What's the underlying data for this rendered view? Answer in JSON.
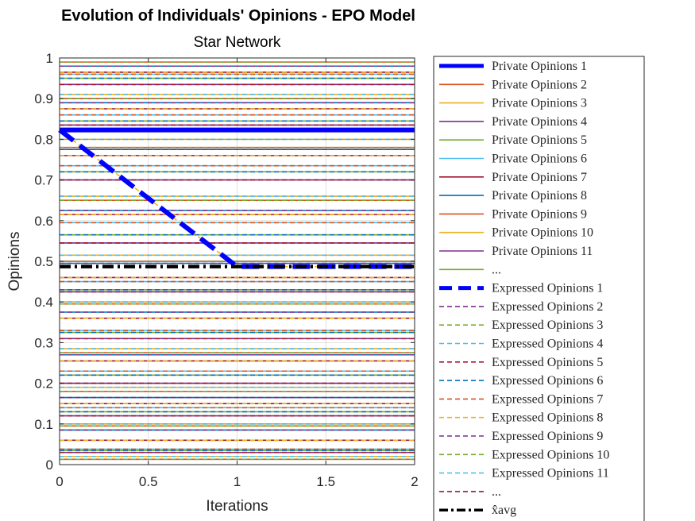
{
  "chart_data": {
    "type": "line",
    "title": "Evolution of Individuals' Opinions - EPO Model",
    "subtitle": "Star Network",
    "xlabel": "Iterations",
    "ylabel": "Opinions",
    "xlim": [
      0,
      2
    ],
    "ylim": [
      0,
      1
    ],
    "xticks": [
      "0",
      "0.5",
      "1",
      "1.5",
      "2"
    ],
    "yticks": [
      "0",
      "0.1",
      "0.2",
      "0.3",
      "0.4",
      "0.5",
      "0.6",
      "0.7",
      "0.8",
      "0.9",
      "1"
    ],
    "grid": true,
    "legend_position": "outside-right",
    "highlighted_series": [
      {
        "name": "Private Opinions 1",
        "style": "solid",
        "color": "#0000ff",
        "x": [
          0,
          1,
          2
        ],
        "y": [
          0.823,
          0.823,
          0.823
        ]
      },
      {
        "name": "Expressed Opinions 1",
        "style": "dashed",
        "color": "#0000ff",
        "x": [
          0,
          1,
          2
        ],
        "y": [
          0.823,
          0.487,
          0.487
        ]
      },
      {
        "name": "Expressed Opinions 8",
        "style": "dashed",
        "color": "#edb120",
        "x": [
          0,
          1,
          2
        ],
        "y": [
          0.823,
          0.487,
          0.487
        ]
      },
      {
        "name": "x̂_avg",
        "style": "dashdot",
        "color": "#000000",
        "x": [
          0,
          1,
          2
        ],
        "y": [
          0.487,
          0.487,
          0.487
        ]
      }
    ],
    "background_levels": {
      "note_colors": [
        "#d95319",
        "#edb120",
        "#7e2f8e",
        "#77ac30",
        "#4dbeee",
        "#a2142f",
        "#0072bd"
      ],
      "values": [
        0.013,
        0.02,
        0.03,
        0.035,
        0.038,
        0.06,
        0.085,
        0.095,
        0.1,
        0.12,
        0.13,
        0.14,
        0.15,
        0.165,
        0.18,
        0.19,
        0.2,
        0.22,
        0.23,
        0.255,
        0.27,
        0.275,
        0.285,
        0.31,
        0.325,
        0.33,
        0.36,
        0.375,
        0.395,
        0.4,
        0.425,
        0.43,
        0.45,
        0.46,
        0.495,
        0.5,
        0.515,
        0.545,
        0.565,
        0.595,
        0.615,
        0.625,
        0.65,
        0.66,
        0.7,
        0.72,
        0.735,
        0.76,
        0.775,
        0.78,
        0.8,
        0.835,
        0.845,
        0.86,
        0.875,
        0.89,
        0.9,
        0.91,
        0.935,
        0.95,
        0.96,
        0.965,
        0.98,
        0.99
      ]
    }
  },
  "legend": {
    "entries": [
      {
        "label": "Private Opinions 1",
        "color": "#0000ff",
        "style": "solid-thick"
      },
      {
        "label": "Private Opinions 2",
        "color": "#d95319",
        "style": "solid"
      },
      {
        "label": "Private Opinions 3",
        "color": "#edb120",
        "style": "solid"
      },
      {
        "label": "Private Opinions 4",
        "color": "#7e2f8e",
        "style": "solid"
      },
      {
        "label": "Private Opinions 5",
        "color": "#77ac30",
        "style": "solid"
      },
      {
        "label": "Private Opinions 6",
        "color": "#4dbeee",
        "style": "solid"
      },
      {
        "label": "Private Opinions 7",
        "color": "#a2142f",
        "style": "solid"
      },
      {
        "label": "Private Opinions 8",
        "color": "#0072bd",
        "style": "solid"
      },
      {
        "label": "Private Opinions 9",
        "color": "#d95319",
        "style": "solid"
      },
      {
        "label": "Private Opinions 10",
        "color": "#edb120",
        "style": "solid"
      },
      {
        "label": "Private Opinions 11",
        "color": "#7e2f8e",
        "style": "solid"
      },
      {
        "label": "...",
        "color": "#77ac30",
        "style": "solid"
      },
      {
        "label": "Expressed Opinions 1",
        "color": "#0000ff",
        "style": "dashed-thick"
      },
      {
        "label": "Expressed Opinions 2",
        "color": "#7e2f8e",
        "style": "dashed"
      },
      {
        "label": "Expressed Opinions 3",
        "color": "#77ac30",
        "style": "dashed"
      },
      {
        "label": "Expressed Opinions 4",
        "color": "#4dbeee",
        "style": "dashed"
      },
      {
        "label": "Expressed Opinions 5",
        "color": "#a2142f",
        "style": "dashed"
      },
      {
        "label": "Expressed Opinions 6",
        "color": "#0072bd",
        "style": "dashed"
      },
      {
        "label": "Expressed Opinions 7",
        "color": "#d95319",
        "style": "dashed"
      },
      {
        "label": "Expressed Opinions 8",
        "color": "#edb120",
        "style": "dashed"
      },
      {
        "label": "Expressed Opinions 9",
        "color": "#7e2f8e",
        "style": "dashed"
      },
      {
        "label": "Expressed Opinions 10",
        "color": "#77ac30",
        "style": "dashed"
      },
      {
        "label": "Expressed Opinions 11",
        "color": "#4dbeee",
        "style": "dashed"
      },
      {
        "label": "...",
        "color": "#a2142f",
        "style": "dashed"
      },
      {
        "label": "x̂avg",
        "color": "#000000",
        "style": "dashdot-thick"
      }
    ]
  }
}
